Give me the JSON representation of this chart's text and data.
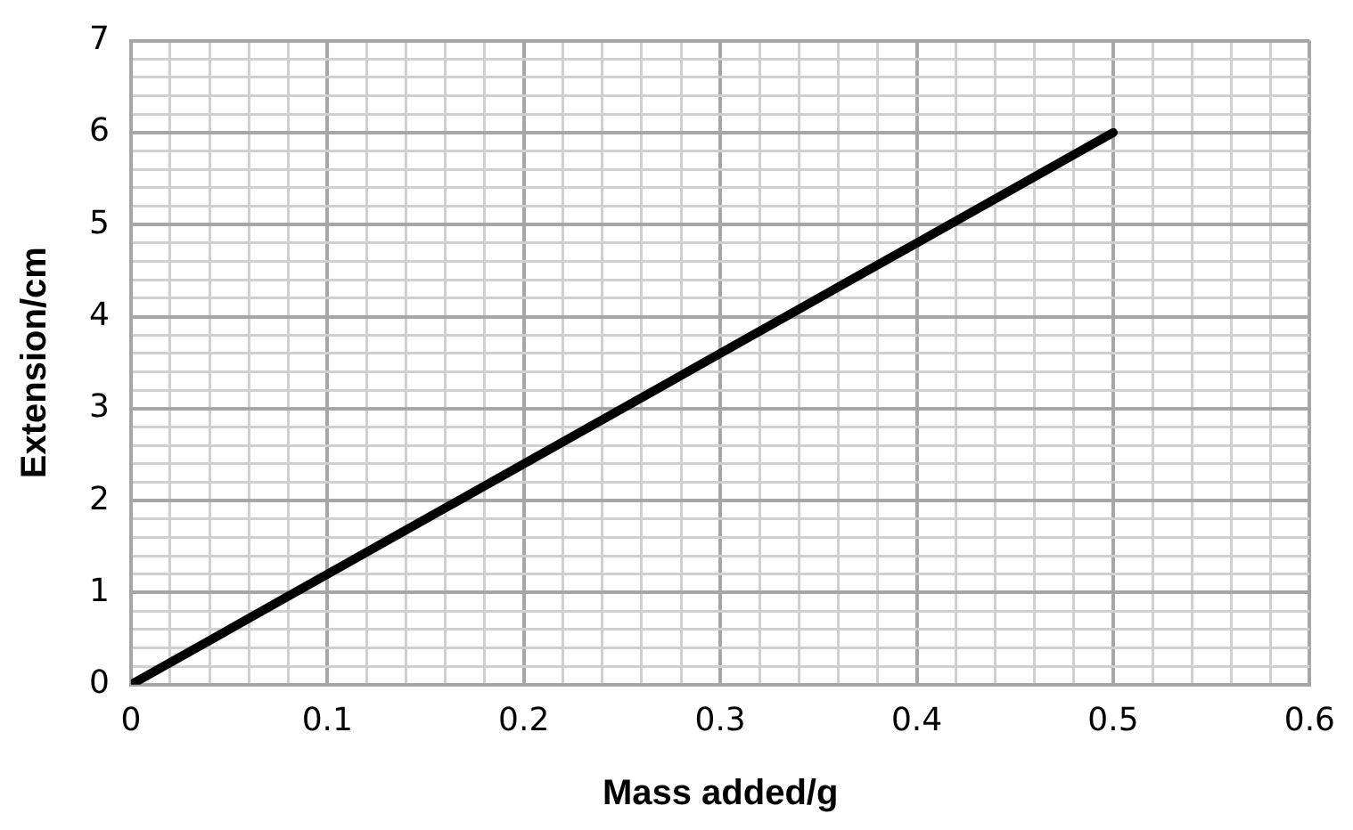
{
  "chart_data": {
    "type": "line",
    "xlabel": "Mass added/g",
    "ylabel": "Extension/cm",
    "x": [
      0,
      0.5
    ],
    "series": [
      {
        "color": "#000000",
        "values": [
          0,
          6
        ]
      }
    ],
    "xlim": [
      0,
      0.6
    ],
    "xticks": [
      0,
      {
        "value": 0.02,
        "label": null
      },
      {
        "value": 0.04,
        "label": null
      },
      {
        "value": 0.06,
        "label": null
      },
      {
        "value": 0.08,
        "label": null
      },
      0.1,
      {
        "value": 0.12,
        "label": null
      },
      {
        "value": 0.14,
        "label": null
      },
      {
        "value": 0.16,
        "label": null
      },
      {
        "value": 0.18,
        "label": null
      },
      0.2,
      {
        "value": 0.22,
        "label": null
      },
      {
        "value": 0.24,
        "label": null
      },
      {
        "value": 0.26,
        "label": null
      },
      {
        "value": 0.28,
        "label": null
      },
      0.3,
      {
        "value": 0.32,
        "label": null
      },
      {
        "value": 0.34,
        "label": null
      },
      {
        "value": 0.36,
        "label": null
      },
      {
        "value": 0.38,
        "label": null
      },
      0.4,
      {
        "value": 0.42,
        "label": null
      },
      {
        "value": 0.44,
        "label": null
      },
      {
        "value": 0.46,
        "label": null
      },
      {
        "value": 0.48,
        "label": null
      },
      0.5,
      {
        "value": 0.52,
        "label": null
      },
      {
        "value": 0.54,
        "label": null
      },
      {
        "value": 0.56,
        "label": null
      },
      {
        "value": 0.58,
        "label": null
      },
      0.6
    ],
    "ylim": [
      0,
      7
    ],
    "yticks": [
      0,
      {
        "value": 0.2,
        "label": null
      },
      {
        "value": 0.4,
        "label": null
      },
      {
        "value": 0.6,
        "label": null
      },
      {
        "value": 0.8,
        "label": null
      },
      1,
      {
        "value": 1.2,
        "label": null
      },
      {
        "value": 1.4,
        "label": null
      },
      {
        "value": 1.6,
        "label": null
      },
      {
        "value": 1.8,
        "label": null
      },
      2,
      {
        "value": 2.2,
        "label": null
      },
      {
        "value": 2.4,
        "label": null
      },
      {
        "value": 2.6,
        "label": null
      },
      {
        "value": 2.8,
        "label": null
      },
      3,
      {
        "value": 3.2,
        "label": null
      },
      {
        "value": 3.4,
        "label": null
      },
      {
        "value": 3.6,
        "label": null
      },
      {
        "value": 3.8,
        "label": null
      },
      4,
      {
        "value": 4.2,
        "label": null
      },
      {
        "value": 4.4,
        "label": null
      },
      {
        "value": 4.6,
        "label": null
      },
      {
        "value": 4.8,
        "label": null
      },
      5,
      {
        "value": 5.2,
        "label": null
      },
      {
        "value": 5.4,
        "label": null
      },
      {
        "value": 5.6,
        "label": null
      },
      {
        "value": 5.8,
        "label": null
      },
      6,
      {
        "value": 6.2,
        "label": null
      },
      {
        "value": 6.4,
        "label": null
      },
      {
        "value": 6.6,
        "label": null
      },
      {
        "value": 6.8,
        "label": null
      },
      7
    ],
    "grid": true,
    "marker": "none",
    "line_style": "solid",
    "legend": false
  }
}
